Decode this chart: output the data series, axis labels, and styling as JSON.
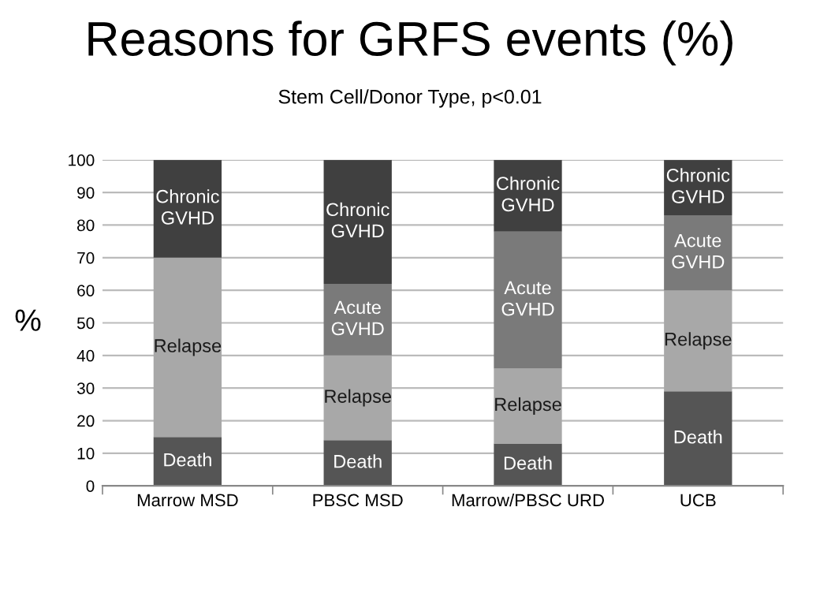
{
  "chart_data": {
    "type": "bar",
    "title": "Reasons for GRFS events (%)",
    "subtitle": "Stem Cell/Donor Type, p<0.01",
    "ylabel": "%",
    "categories": [
      "Marrow MSD",
      "PBSC MSD",
      "Marrow/PBSC URD",
      "UCB"
    ],
    "stacked": true,
    "ylim": [
      0,
      100
    ],
    "yticks": [
      0,
      10,
      20,
      30,
      40,
      50,
      60,
      70,
      80,
      90,
      100
    ],
    "grid": "y",
    "legend": false,
    "series": [
      {
        "name": "Death",
        "color": "#555555",
        "values": [
          15,
          14,
          13,
          29
        ]
      },
      {
        "name": "Relapse",
        "color": "#a8a8a8",
        "values": [
          55,
          26,
          23,
          31
        ]
      },
      {
        "name": "Acute GVHD",
        "color": "#7a7a7a",
        "values": [
          0,
          22,
          42,
          23
        ]
      },
      {
        "name": "Chronic GVHD",
        "color": "#404040",
        "values": [
          30,
          38,
          22,
          17
        ]
      }
    ]
  }
}
